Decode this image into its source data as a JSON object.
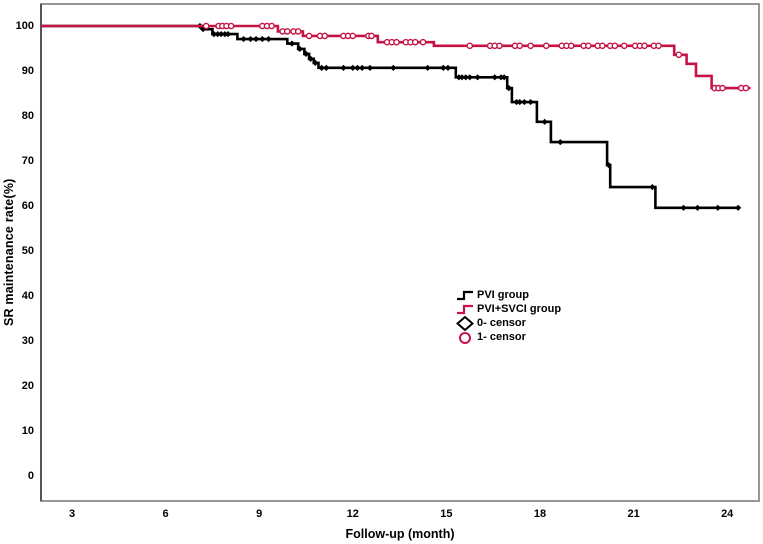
{
  "chart_data": {
    "type": "line",
    "variant": "kaplan_meier_step",
    "title": "",
    "xlabel": "Follow-up (month)",
    "ylabel": "SR maintenance rate(%)",
    "xticks": [
      3,
      6,
      9,
      12,
      15,
      18,
      21,
      24
    ],
    "yticks": [
      100,
      90,
      80,
      70,
      60,
      50,
      40,
      30,
      20,
      10,
      0
    ],
    "xlim": [
      2.0,
      25.0
    ],
    "ylim": [
      -5.8,
      105.1
    ],
    "grid": false,
    "frame_color": "#969696",
    "background": "#ffffff",
    "series": [
      {
        "name": "PVI group",
        "color": "#000000",
        "censor_marker": "diamond",
        "steps": [
          [
            2.0,
            100
          ],
          [
            7.2,
            99.3
          ],
          [
            7.5,
            98.2
          ],
          [
            8.3,
            97.1
          ],
          [
            9.9,
            96.1
          ],
          [
            10.25,
            94.9
          ],
          [
            10.45,
            93.8
          ],
          [
            10.6,
            92.7
          ],
          [
            10.75,
            91.8
          ],
          [
            10.9,
            90.7
          ],
          [
            15.3,
            88.6
          ],
          [
            16.95,
            86.2
          ],
          [
            17.1,
            83.1
          ],
          [
            17.9,
            78.7
          ],
          [
            18.35,
            74.2
          ],
          [
            20.15,
            69.1
          ],
          [
            20.25,
            64.2
          ],
          [
            21.7,
            59.6
          ],
          [
            24.4,
            59.6
          ]
        ],
        "censors": [
          [
            7.1,
            100
          ],
          [
            7.2,
            99.3
          ],
          [
            7.55,
            98.2
          ],
          [
            7.67,
            98.2
          ],
          [
            7.78,
            98.2
          ],
          [
            7.9,
            98.2
          ],
          [
            8.0,
            98.2
          ],
          [
            8.5,
            97.1
          ],
          [
            8.72,
            97.1
          ],
          [
            8.9,
            97.1
          ],
          [
            9.1,
            97.1
          ],
          [
            9.3,
            97.1
          ],
          [
            10.05,
            96.1
          ],
          [
            10.3,
            94.9
          ],
          [
            10.5,
            93.8
          ],
          [
            10.65,
            92.7
          ],
          [
            10.8,
            91.8
          ],
          [
            11.0,
            90.7
          ],
          [
            11.15,
            90.7
          ],
          [
            11.7,
            90.7
          ],
          [
            12.0,
            90.7
          ],
          [
            12.15,
            90.7
          ],
          [
            12.3,
            90.7
          ],
          [
            12.55,
            90.7
          ],
          [
            13.3,
            90.7
          ],
          [
            14.4,
            90.7
          ],
          [
            14.9,
            90.7
          ],
          [
            15.05,
            90.7
          ],
          [
            15.4,
            88.6
          ],
          [
            15.5,
            88.6
          ],
          [
            15.62,
            88.6
          ],
          [
            15.75,
            88.6
          ],
          [
            16.0,
            88.6
          ],
          [
            16.55,
            88.6
          ],
          [
            16.75,
            88.6
          ],
          [
            16.85,
            88.6
          ],
          [
            17.0,
            86.2
          ],
          [
            17.25,
            83.1
          ],
          [
            17.35,
            83.1
          ],
          [
            17.5,
            83.1
          ],
          [
            17.7,
            83.1
          ],
          [
            18.15,
            78.7
          ],
          [
            18.65,
            74.2
          ],
          [
            20.2,
            69.1
          ],
          [
            21.6,
            64.2
          ],
          [
            22.6,
            59.6
          ],
          [
            23.05,
            59.6
          ],
          [
            23.7,
            59.6
          ],
          [
            24.35,
            59.6
          ]
        ]
      },
      {
        "name": "PVI+SVCI group",
        "color": "#C51345",
        "censor_marker": "circle",
        "steps": [
          [
            2.0,
            100
          ],
          [
            9.6,
            98.8
          ],
          [
            10.4,
            97.8
          ],
          [
            12.8,
            96.4
          ],
          [
            14.6,
            95.6
          ],
          [
            22.3,
            93.6
          ],
          [
            22.7,
            91.6
          ],
          [
            23.0,
            88.9
          ],
          [
            23.5,
            86.2
          ],
          [
            24.75,
            86.2
          ]
        ],
        "censors": [
          [
            7.3,
            100
          ],
          [
            7.7,
            100
          ],
          [
            7.82,
            100
          ],
          [
            7.95,
            100
          ],
          [
            8.1,
            100
          ],
          [
            9.1,
            100
          ],
          [
            9.25,
            100
          ],
          [
            9.4,
            100
          ],
          [
            9.75,
            98.8
          ],
          [
            9.9,
            98.8
          ],
          [
            10.1,
            98.8
          ],
          [
            10.25,
            98.8
          ],
          [
            10.6,
            97.8
          ],
          [
            10.95,
            97.8
          ],
          [
            11.1,
            97.8
          ],
          [
            11.7,
            97.8
          ],
          [
            11.85,
            97.8
          ],
          [
            12.0,
            97.8
          ],
          [
            12.5,
            97.8
          ],
          [
            12.6,
            97.8
          ],
          [
            13.1,
            96.4
          ],
          [
            13.25,
            96.4
          ],
          [
            13.4,
            96.4
          ],
          [
            13.7,
            96.4
          ],
          [
            13.85,
            96.4
          ],
          [
            14.0,
            96.4
          ],
          [
            14.25,
            96.4
          ],
          [
            15.75,
            95.6
          ],
          [
            16.4,
            95.6
          ],
          [
            16.55,
            95.6
          ],
          [
            16.7,
            95.6
          ],
          [
            17.2,
            95.6
          ],
          [
            17.35,
            95.6
          ],
          [
            17.7,
            95.6
          ],
          [
            18.2,
            95.6
          ],
          [
            18.7,
            95.6
          ],
          [
            18.85,
            95.6
          ],
          [
            19.0,
            95.6
          ],
          [
            19.4,
            95.6
          ],
          [
            19.55,
            95.6
          ],
          [
            19.85,
            95.6
          ],
          [
            20.0,
            95.6
          ],
          [
            20.25,
            95.6
          ],
          [
            20.4,
            95.6
          ],
          [
            20.7,
            95.6
          ],
          [
            21.05,
            95.6
          ],
          [
            21.2,
            95.6
          ],
          [
            21.35,
            95.6
          ],
          [
            21.65,
            95.6
          ],
          [
            21.8,
            95.6
          ],
          [
            22.45,
            93.6
          ],
          [
            23.6,
            86.2
          ],
          [
            23.72,
            86.2
          ],
          [
            23.85,
            86.2
          ],
          [
            24.45,
            86.2
          ],
          [
            24.6,
            86.2
          ]
        ]
      }
    ],
    "legend": {
      "position": "center-right",
      "items": [
        {
          "label": "PVI group",
          "glyph": "step",
          "color": "#000000"
        },
        {
          "label": "PVI+SVCI group",
          "glyph": "step",
          "color": "#C51345"
        },
        {
          "label": "0- censor",
          "glyph": "diamond",
          "color": "#000000"
        },
        {
          "label": "1- censor",
          "glyph": "circle",
          "color": "#C51345"
        }
      ]
    }
  }
}
